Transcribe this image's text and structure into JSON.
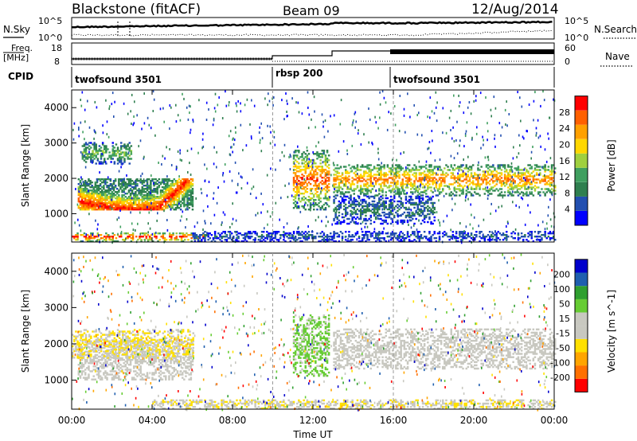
{
  "header": {
    "title": "Blackstone (fitACF)",
    "beam": "Beam 09",
    "date": "12/Aug/2014"
  },
  "nsky_panel": {
    "left_label": "N.Sky",
    "right_label": "N.Search",
    "left_ticks": [
      "10^5",
      "10^0"
    ],
    "right_ticks": [
      "10^5",
      "10^0"
    ]
  },
  "freq_panel": {
    "left_label_1": "Freq.",
    "left_label_2": "[MHz]",
    "right_label": "Nave",
    "left_ticks": [
      "18",
      "8"
    ],
    "right_ticks": [
      "60",
      "0"
    ]
  },
  "cpid_panel": {
    "label": "CPID",
    "segments": [
      {
        "start_hour": 0,
        "end_hour": 10,
        "name": "twofsound 3501"
      },
      {
        "start_hour": 10,
        "end_hour": 16,
        "name": "rbsp 200"
      },
      {
        "start_hour": 16,
        "end_hour": 24,
        "name": "twofsound 3501"
      }
    ]
  },
  "x_axis": {
    "label": "Time UT",
    "ticks": [
      "00:00",
      "04:00",
      "08:00",
      "12:00",
      "16:00",
      "20:00",
      "00:00"
    ]
  },
  "colors": {
    "power_scale": [
      "#0000ff",
      "#224fb0",
      "#2f7f4f",
      "#3f9f5f",
      "#9fd03f",
      "#ffd700",
      "#ffa000",
      "#ff6000",
      "#ff0000"
    ],
    "velocity_scale": [
      "#ff0000",
      "#ff7000",
      "#ffa500",
      "#ffe000",
      "#c8c8c0",
      "#c8c8c0",
      "#66cc33",
      "#2f9f2f",
      "#1f5faf",
      "#0000cc"
    ]
  },
  "chart_data": [
    {
      "type": "heatmap",
      "quantity": "power",
      "ylabel": "Slant Range [km]",
      "xlabel": "Time UT",
      "xlim": [
        0,
        24
      ],
      "ylim": [
        200,
        4500
      ],
      "yticks": [
        "1000",
        "2000",
        "3000",
        "4000"
      ],
      "colorbar": {
        "label": "Power [dB]",
        "ticks": [
          "4",
          "8",
          "12",
          "16",
          "20",
          "24",
          "28"
        ],
        "range": [
          0,
          30
        ]
      },
      "features": [
        {
          "hours": [
            0.3,
            6.0
          ],
          "range_km": [
            1100,
            2000
          ],
          "peak_db": 28,
          "note": "arc"
        },
        {
          "hours": [
            0.0,
            6.5
          ],
          "range_km": [
            200,
            450
          ],
          "peak_db": 30
        },
        {
          "hours": [
            0.5,
            3.0
          ],
          "range_km": [
            2400,
            3000
          ],
          "peak_db": 14
        },
        {
          "hours": [
            11.0,
            12.8
          ],
          "range_km": [
            1100,
            2800
          ],
          "peak_db": 26
        },
        {
          "hours": [
            13.0,
            24.0
          ],
          "range_km": [
            1500,
            2400
          ],
          "peak_db": 24
        },
        {
          "hours": [
            13.0,
            18.0
          ],
          "range_km": [
            700,
            1500
          ],
          "peak_db": 8
        },
        {
          "hours": [
            6.0,
            24.0
          ],
          "range_km": [
            200,
            500
          ],
          "peak_db": 6
        }
      ]
    },
    {
      "type": "heatmap",
      "quantity": "velocity",
      "ylabel": "Slant Range [km]",
      "xlabel": "Time UT",
      "xlim": [
        0,
        24
      ],
      "ylim": [
        200,
        4500
      ],
      "yticks": [
        "1000",
        "2000",
        "3000",
        "4000"
      ],
      "colorbar": {
        "label": "Velocity [m s^-1]",
        "ticks": [
          "-200",
          "-100",
          "-50",
          "-15",
          "15",
          "50",
          "100",
          "200"
        ],
        "range": [
          -250,
          250
        ]
      },
      "features": [
        {
          "hours": [
            0.3,
            6.0
          ],
          "range_km": [
            1000,
            2100
          ],
          "velocity": 0
        },
        {
          "hours": [
            0.0,
            6.0
          ],
          "range_km": [
            1600,
            2400
          ],
          "velocity": -50
        },
        {
          "hours": [
            11.0,
            12.8
          ],
          "range_km": [
            1100,
            2800
          ],
          "velocity": 60
        },
        {
          "hours": [
            13.0,
            24.0
          ],
          "range_km": [
            1300,
            2400
          ],
          "velocity": 0
        },
        {
          "hours": [
            4.0,
            24.0
          ],
          "range_km": [
            200,
            450
          ],
          "velocity": -40
        }
      ]
    }
  ]
}
